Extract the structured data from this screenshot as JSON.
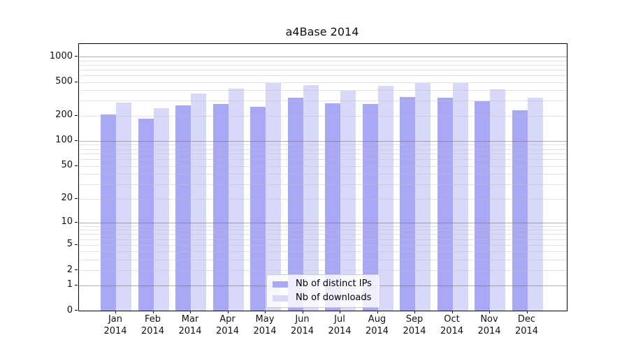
{
  "chart_data": {
    "type": "bar",
    "title": "a4Base 2014",
    "categories": [
      "Jan",
      "Feb",
      "Mar",
      "Apr",
      "May",
      "Jun",
      "Jul",
      "Aug",
      "Sep",
      "Oct",
      "Nov",
      "Dec"
    ],
    "year_label": "2014",
    "series": [
      {
        "name": "Nb of distinct IPs",
        "color": "#a8a8f6",
        "values": [
          207,
          185,
          265,
          277,
          253,
          329,
          281,
          273,
          333,
          323,
          294,
          230
        ]
      },
      {
        "name": "Nb of downloads",
        "color": "#d8d8f8",
        "values": [
          288,
          247,
          362,
          420,
          484,
          455,
          393,
          449,
          490,
          488,
          413,
          325
        ]
      }
    ],
    "xlabel": "",
    "ylabel": "",
    "yscale": "log1p",
    "ylim": [
      0,
      1000
    ],
    "yticks": [
      1000,
      500,
      200,
      100,
      50,
      20,
      10,
      5,
      2,
      1,
      0
    ],
    "grid": "major+minor, horizontal, drawn over bars",
    "legend_position": "lower-center",
    "colors": {
      "bar_distinct_ips": "#a8a8f6",
      "bar_downloads": "#d8d8f8",
      "major_grid": "#a3a3a3",
      "minor_grid": "#e5e5e5",
      "spine": "#000000",
      "background": "#ffffff",
      "legend_border": "#cccccc"
    }
  }
}
